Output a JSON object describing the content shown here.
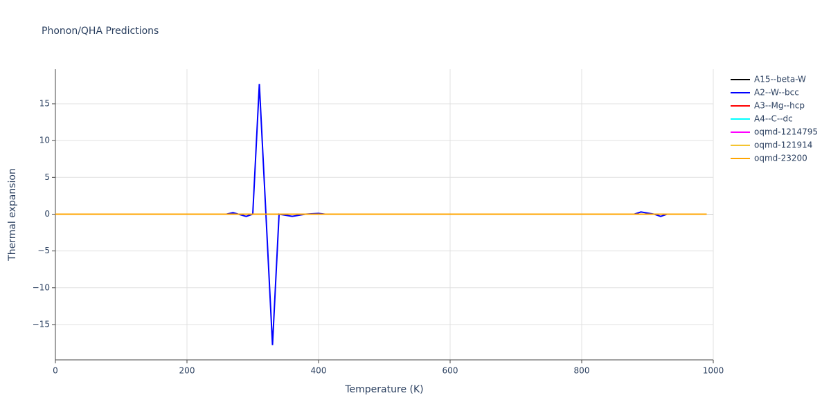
{
  "chart_data": {
    "type": "line",
    "title": "Phonon/QHA Predictions",
    "x_label": "Temperature (K)",
    "y_label": "Thermal expansion",
    "x": [
      0,
      260,
      270,
      290,
      300,
      310,
      320,
      330,
      340,
      360,
      380,
      400,
      410,
      880,
      890,
      910,
      920,
      930,
      990
    ],
    "series": [
      {
        "name": "A15--beta-W",
        "color": "#000000",
        "values": [
          0,
          0,
          0,
          0,
          0,
          0,
          0,
          0,
          0,
          0,
          0,
          0,
          0,
          0,
          0,
          0,
          0,
          0,
          0
        ]
      },
      {
        "name": "A2--W--bcc",
        "color": "#0000ff",
        "values": [
          0,
          0,
          0.2,
          -0.3,
          0,
          17.7,
          0,
          -17.8,
          0,
          -0.3,
          0,
          0.1,
          0,
          0,
          0.3,
          0,
          -0.3,
          0,
          0
        ]
      },
      {
        "name": "A3--Mg--hcp",
        "color": "#ff0000",
        "values": [
          0,
          0,
          0,
          0,
          0,
          0,
          0,
          0,
          0,
          0,
          0,
          0,
          0,
          0,
          0,
          0,
          0,
          0,
          0
        ]
      },
      {
        "name": "A4--C--dc",
        "color": "#00ffff",
        "values": [
          0,
          0,
          0,
          0,
          0,
          0,
          0,
          0,
          0,
          0,
          0,
          0,
          0,
          0,
          0,
          0,
          0,
          0,
          0
        ]
      },
      {
        "name": "oqmd-1214795",
        "color": "#ff00ff",
        "values": [
          0,
          0,
          0,
          0,
          0,
          0,
          0,
          0,
          0,
          0,
          0,
          0,
          0,
          0,
          0,
          0,
          0,
          0,
          0
        ]
      },
      {
        "name": "oqmd-121914",
        "color": "#f4c430",
        "values": [
          0,
          0,
          0,
          0,
          0,
          0,
          0,
          0,
          0,
          0,
          0,
          0,
          0,
          0,
          0,
          0,
          0,
          0,
          0
        ]
      },
      {
        "name": "oqmd-23200",
        "color": "#ffa500",
        "values": [
          0,
          0,
          0,
          0,
          0,
          0,
          0,
          0,
          0,
          0,
          0,
          0,
          0,
          0,
          0,
          0,
          0,
          0,
          0
        ]
      }
    ],
    "xlim": [
      0,
      1000
    ],
    "xticks": [
      0,
      200,
      400,
      600,
      800,
      1000
    ],
    "ylim": [
      -19.8,
      19.7
    ],
    "yticks": [
      {
        "value": -15,
        "label": "−15"
      },
      {
        "value": -10,
        "label": "−10"
      },
      {
        "value": -5,
        "label": "−5"
      },
      0,
      5,
      10,
      15
    ],
    "grid": true,
    "legend": "right"
  }
}
